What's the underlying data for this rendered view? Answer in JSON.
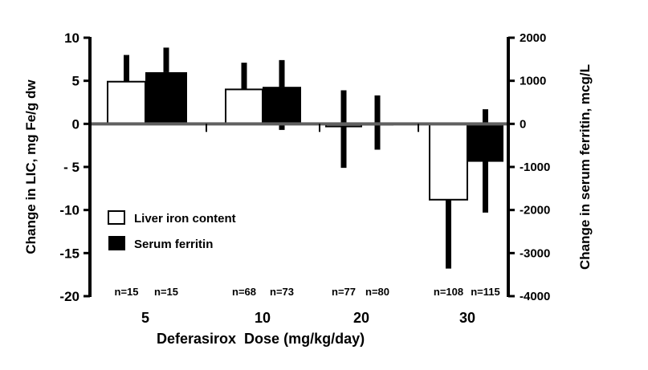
{
  "chart_data": {
    "type": "bar",
    "title": "",
    "xlabel": "Deferasirox  Dose (mg/kg/day)",
    "ylabel": "Change in LIC, mg Fe/g dw",
    "y2label": "Change in serum ferritin, mcg/L",
    "categories": [
      "5",
      "10",
      "20",
      "30"
    ],
    "ylim": [
      -20,
      10
    ],
    "y2lim": [
      -4000,
      2000
    ],
    "yticks": [
      "10",
      "5",
      "0",
      "- 5",
      "-10",
      "-15",
      "-20"
    ],
    "ytick_values": [
      10,
      5,
      0,
      -5,
      -10,
      -15,
      -20
    ],
    "y2ticks": [
      "2000",
      "1000",
      "0",
      "-1000",
      "-2000",
      "-3000",
      "-4000"
    ],
    "y2tick_values": [
      2000,
      1000,
      0,
      -1000,
      -2000,
      -3000,
      -4000
    ],
    "grid": false,
    "legend_position": "bottom-left",
    "series": [
      {
        "name": "Liver iron content",
        "axis": "left",
        "fill": "#ffffff",
        "values": [
          4.9,
          4.0,
          -0.3,
          -8.8
        ],
        "error_ends": [
          8.0,
          7.1,
          [
            3.9,
            -5.1
          ],
          -16.8
        ],
        "n_labels": [
          "n=15",
          "n=68",
          "n=77",
          "n=108"
        ]
      },
      {
        "name": "Serum ferritin",
        "axis": "right",
        "fill": "#000000",
        "values": [
          1200,
          860,
          20,
          -880
        ],
        "error_ends": [
          1770,
          [
            1480,
            -140
          ],
          [
            660,
            -600
          ],
          [
            340,
            -2060
          ]
        ],
        "n_labels": [
          "n=15",
          "n=73",
          "n=80",
          "n=115"
        ]
      }
    ],
    "colors": {
      "axis": "#000000",
      "zero_line": "#606060",
      "bar_edge": "#000000"
    }
  }
}
